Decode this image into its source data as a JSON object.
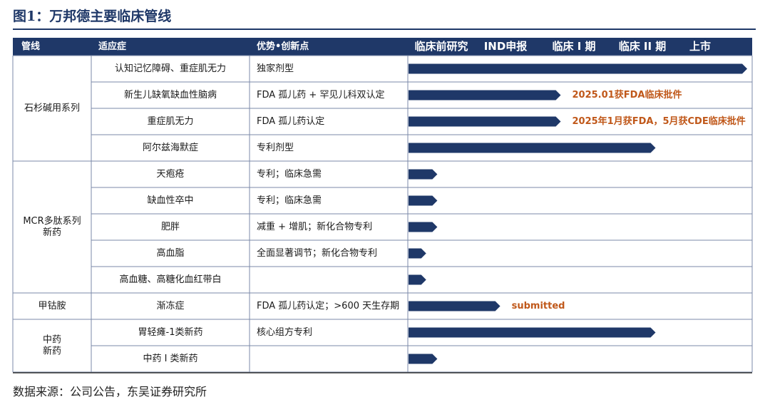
{
  "figure": {
    "title": "图1：万邦德主要临床管线",
    "source": "数据来源：公司公告，东吴证券研究所"
  },
  "colors": {
    "header_bg": "#1f3868",
    "bar": "#1f3868",
    "annotation": "#c0581a",
    "border": "#7b8aa8"
  },
  "table": {
    "headers": [
      "管线",
      "适应症",
      "优势•创新点"
    ],
    "stages": [
      "临床前研究",
      "IND申报",
      "临床 I 期",
      "临床 II 期",
      "上市"
    ],
    "groups": [
      {
        "name": "石杉碱用系列",
        "rows": [
          0,
          1,
          2,
          3
        ]
      },
      {
        "name": "MCR多肽系列\n新药",
        "rows": [
          4,
          5,
          6,
          7,
          8
        ]
      },
      {
        "name": "甲钴胺",
        "rows": [
          9
        ]
      },
      {
        "name": "中药\n新药",
        "rows": [
          10,
          11
        ]
      }
    ]
  },
  "chart_data": {
    "type": "bar",
    "orientation": "horizontal",
    "x_scale": "stage",
    "stage_categories": [
      "临床前研究",
      "IND申报",
      "临床 I 期",
      "临床 II 期",
      "上市"
    ],
    "xlim": [
      0,
      5
    ],
    "rows": [
      {
        "indication": "认知记忆障碍、重症肌无力",
        "advantage": "独家剂型",
        "progress": 5.0,
        "annotation": ""
      },
      {
        "indication": "新生儿缺氧缺血性脑病",
        "advantage": "FDA 孤儿药 + 罕见儿科双认定",
        "progress": 2.3,
        "annotation": "2025.01获FDA临床批件"
      },
      {
        "indication": "重症肌无力",
        "advantage": "FDA 孤儿药认定",
        "progress": 2.3,
        "annotation": "2025年1月获FDA，5月获CDE临床批件"
      },
      {
        "indication": "阿尔兹海默症",
        "advantage": "专利剂型",
        "progress": 3.7,
        "annotation": ""
      },
      {
        "indication": "天疱疮",
        "advantage": "专利；临床急需",
        "progress": 0.45,
        "annotation": ""
      },
      {
        "indication": "缺血性卒中",
        "advantage": "专利；临床急需",
        "progress": 0.45,
        "annotation": ""
      },
      {
        "indication": "肥胖",
        "advantage": "减重 + 增肌；新化合物专利",
        "progress": 0.45,
        "annotation": ""
      },
      {
        "indication": "高血脂",
        "advantage": "全面显著调节；新化合物专利",
        "progress": 0.28,
        "annotation": ""
      },
      {
        "indication": "高血糖、高糖化血红带白",
        "advantage": "",
        "progress": 0.28,
        "annotation": ""
      },
      {
        "indication": "渐冻症",
        "advantage": "FDA 孤儿药认定；>600 天生存期",
        "progress": 1.4,
        "annotation": "submitted"
      },
      {
        "indication": "胃轻瘫-1类新药",
        "advantage": "核心组方专利",
        "progress": 3.7,
        "annotation": ""
      },
      {
        "indication": "中药 I 类新药",
        "advantage": "",
        "progress": 0.45,
        "annotation": ""
      }
    ]
  }
}
